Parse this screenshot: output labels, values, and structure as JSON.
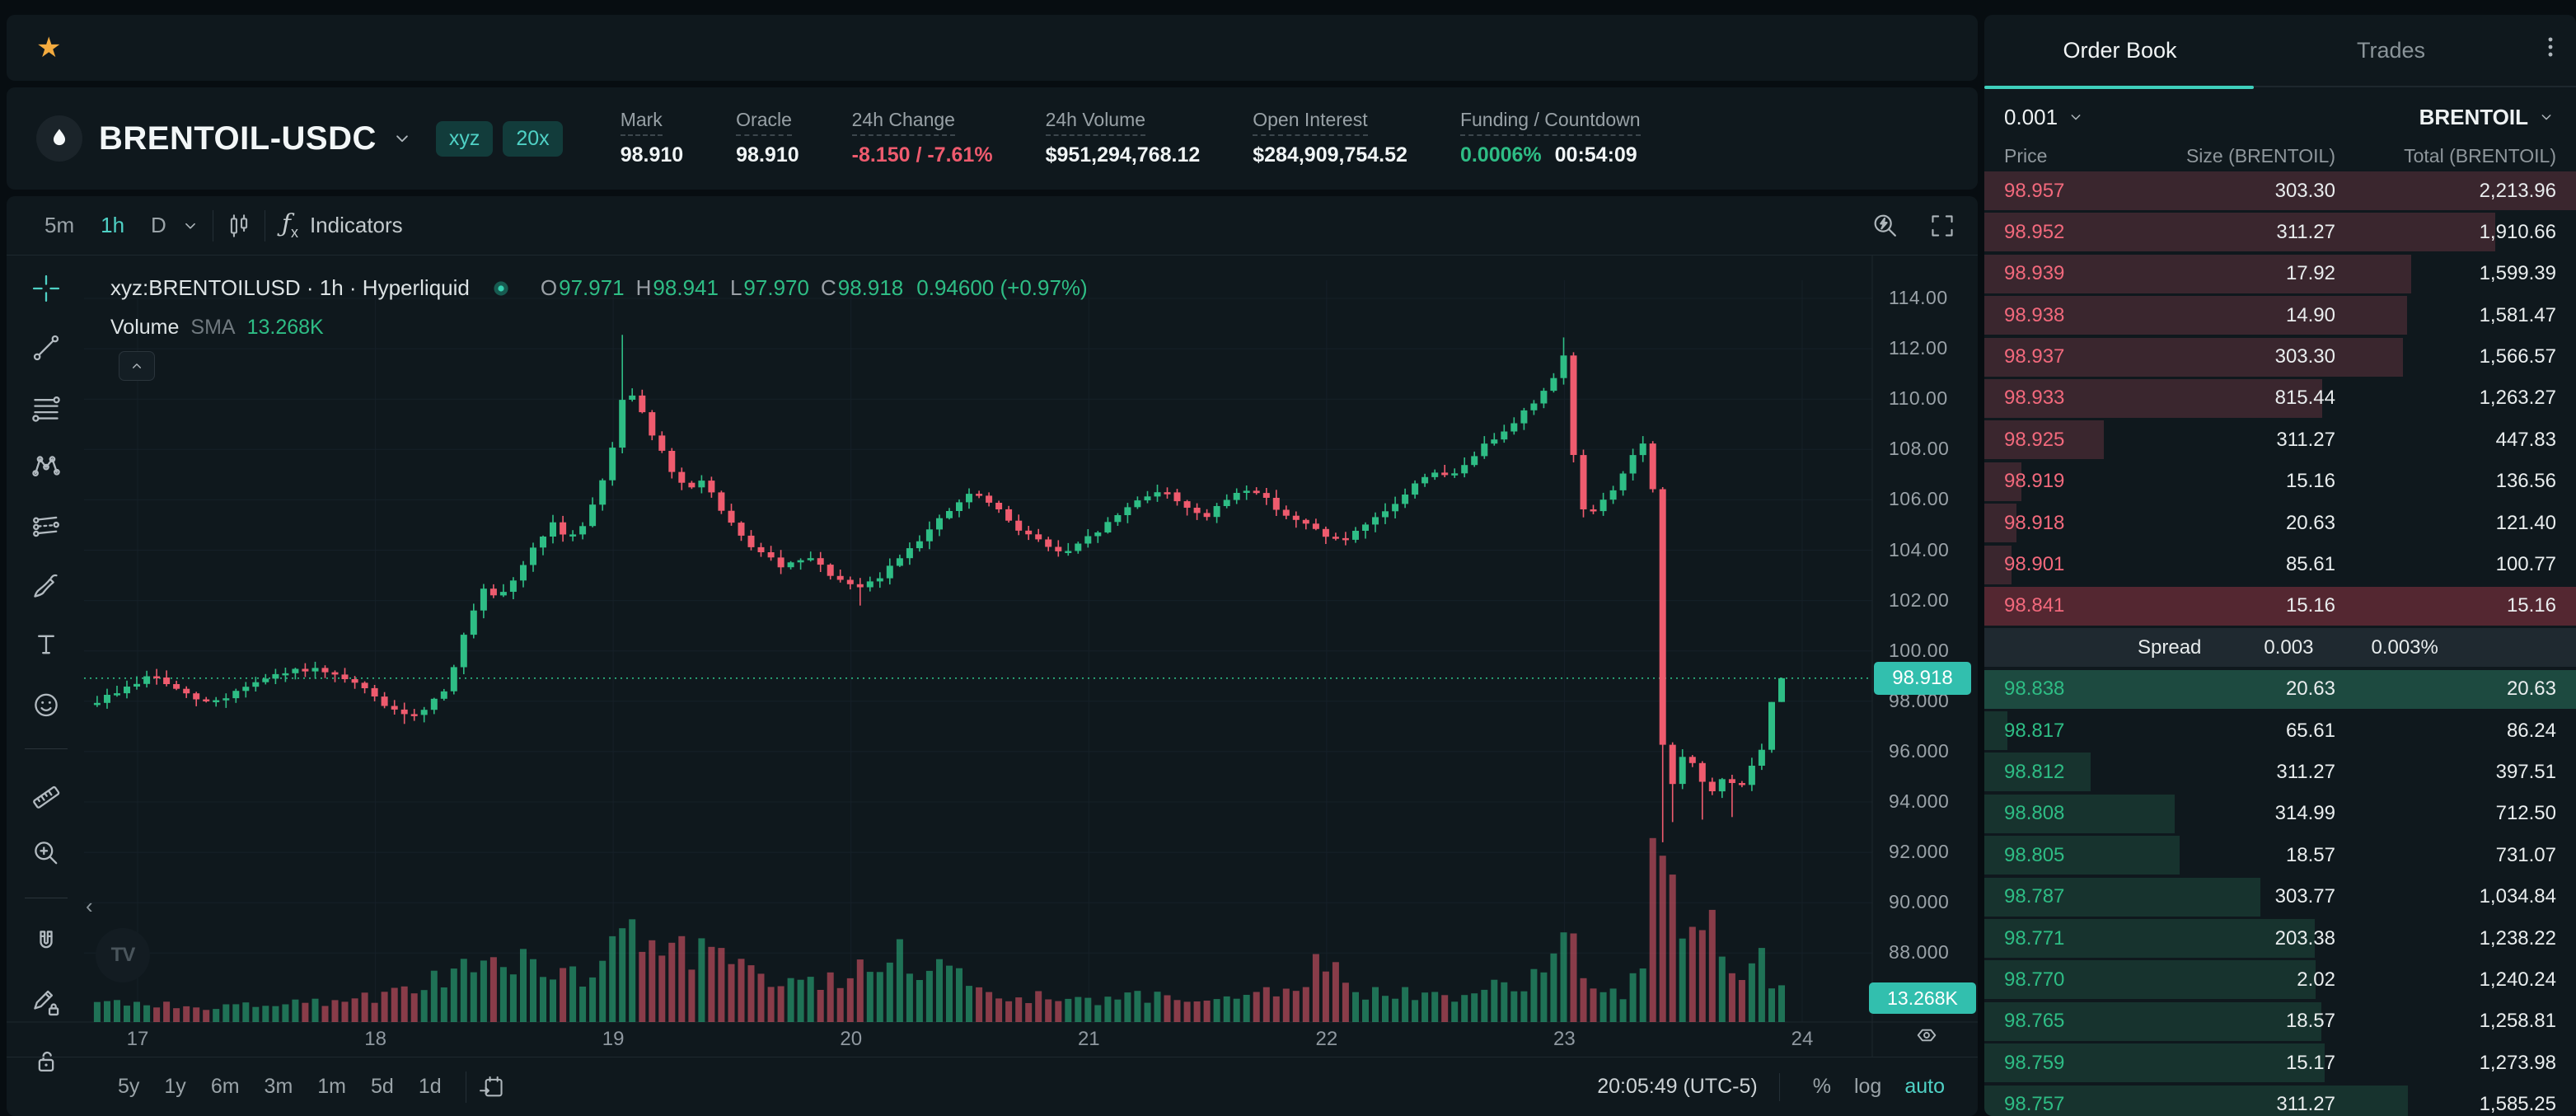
{
  "theme": {
    "bg": "#070d11",
    "panel": "#0f181d",
    "teal": "#4fd1c5",
    "green": "#2ebd85",
    "red": "#ef5b6e",
    "ask_text": "#f2697c",
    "depth_red": "#3a262e",
    "depth_green": "#17332e",
    "flash_red": "#542731",
    "flash_green": "#1d4a40",
    "badge_teal": "#32bfae",
    "star": "#f3ab3f"
  },
  "favorites_bar": {
    "star_icon": "star"
  },
  "symbol_header": {
    "logo_icon": "droplet",
    "symbol": "BRENTOIL-USDC",
    "badges": [
      {
        "label": "xyz"
      },
      {
        "label": "20x"
      }
    ],
    "stats": [
      {
        "label": "Mark",
        "value": "98.910",
        "color": "text"
      },
      {
        "label": "Oracle",
        "value": "98.910",
        "color": "text"
      },
      {
        "label": "24h Change",
        "value": "-8.150 / -7.61%",
        "color": "red"
      },
      {
        "label": "24h Volume",
        "value": "$951,294,768.12",
        "color": "text"
      },
      {
        "label": "Open Interest",
        "value": "$284,909,754.52",
        "color": "text"
      },
      {
        "label": "Funding / Countdown",
        "value": "0.0006%",
        "value2": "00:54:09",
        "color": "funding"
      }
    ]
  },
  "chart_toolbar": {
    "intervals": [
      {
        "label": "5m",
        "active": false
      },
      {
        "label": "1h",
        "active": true
      },
      {
        "label": "D",
        "active": false
      }
    ],
    "indicators_label": "Indicators"
  },
  "drawing_tools": [
    {
      "name": "cursor-crosshair-tool",
      "icon": "crosshair",
      "active": true
    },
    {
      "name": "trend-line-tool",
      "icon": "trend",
      "active": false
    },
    {
      "name": "fib-retracement-tool",
      "icon": "fib",
      "active": false
    },
    {
      "name": "xabcd-pattern-tool",
      "icon": "xabcd",
      "active": false
    },
    {
      "name": "parallel-lines-tool",
      "icon": "parallel",
      "active": false
    },
    {
      "name": "brush-tool",
      "icon": "brush",
      "active": false
    },
    {
      "name": "text-tool",
      "icon": "text",
      "active": false
    },
    {
      "name": "emoji-tool",
      "icon": "emoji",
      "active": false
    },
    {
      "divider": true
    },
    {
      "name": "ruler-tool",
      "icon": "ruler",
      "active": false
    },
    {
      "name": "zoom-in-tool",
      "icon": "zoomin",
      "active": false
    },
    {
      "divider": true
    },
    {
      "name": "magnet-tool",
      "icon": "magnet",
      "active": false
    },
    {
      "name": "drawing-lock-tool",
      "icon": "pencilLock",
      "active": false
    },
    {
      "name": "lock-all-drawings-tool",
      "icon": "lockOpen",
      "active": false
    },
    {
      "name": "hide-drawings-tool",
      "icon": "eyePartial",
      "active": false
    }
  ],
  "chart": {
    "legend": {
      "title": "xyz:BRENTOILUSD · 1h · Hyperliquid",
      "o_label": "O",
      "o": "97.971",
      "h_label": "H",
      "h": "98.941",
      "l_label": "L",
      "l": "97.970",
      "c_label": "C",
      "c": "98.918",
      "change": "0.94600 (+0.97%)"
    },
    "volume_legend": {
      "label": "Volume",
      "sma": "SMA",
      "value": "13.268K"
    },
    "price_label": "98.918",
    "volume_label": "13.268K",
    "y_axis": [
      "114.00",
      "112.00",
      "110.00",
      "108.00",
      "106.00",
      "104.00",
      "102.00",
      "100.00",
      "98.000",
      "96.000",
      "94.000",
      "92.000",
      "90.000",
      "88.000"
    ],
    "x_axis": [
      "17",
      "18",
      "19",
      "20",
      "21",
      "22",
      "23",
      "24"
    ],
    "bottom": {
      "ranges": [
        "5y",
        "1y",
        "6m",
        "3m",
        "1m",
        "5d",
        "1d"
      ],
      "clock": "20:05:49 (UTC-5)",
      "percent": "%",
      "log": "log",
      "auto": "auto"
    }
  },
  "chart_data": {
    "type": "candlestick",
    "symbol": "xyz:BRENTOILUSD",
    "interval": "1h",
    "exchange": "Hyperliquid",
    "current_price": 98.918,
    "current_volume": "13.268K",
    "price_axis_range": [
      86.5,
      114.5
    ],
    "grid_prices": [
      88,
      90,
      92,
      94,
      96,
      98,
      100,
      102,
      104,
      106,
      108,
      110,
      112,
      114
    ],
    "day_ticks": [
      17,
      18,
      19,
      20,
      21,
      22,
      23,
      24
    ],
    "t_start": 16.83,
    "t_end": 23.94,
    "price_anchors": [
      [
        16.83,
        98.0
      ],
      [
        16.92,
        98.4
      ],
      [
        17.0,
        98.75
      ],
      [
        17.06,
        99.05
      ],
      [
        17.12,
        98.7
      ],
      [
        17.2,
        98.25
      ],
      [
        17.28,
        97.95
      ],
      [
        17.36,
        98.1
      ],
      [
        17.45,
        98.6
      ],
      [
        17.55,
        98.9
      ],
      [
        17.64,
        99.15
      ],
      [
        17.72,
        99.3
      ],
      [
        17.8,
        99.05
      ],
      [
        17.9,
        98.75
      ],
      [
        17.98,
        98.3
      ],
      [
        18.06,
        97.7
      ],
      [
        18.13,
        97.35
      ],
      [
        18.22,
        97.8
      ],
      [
        18.3,
        98.6
      ],
      [
        18.38,
        100.8
      ],
      [
        18.45,
        102.4
      ],
      [
        18.52,
        102.0
      ],
      [
        18.6,
        103.1
      ],
      [
        18.68,
        104.3
      ],
      [
        18.74,
        105.1
      ],
      [
        18.8,
        104.4
      ],
      [
        18.87,
        105.0
      ],
      [
        18.94,
        106.3
      ],
      [
        19.0,
        108.2
      ],
      [
        19.05,
        110.6
      ],
      [
        19.1,
        109.9
      ],
      [
        19.17,
        108.5
      ],
      [
        19.24,
        107.2
      ],
      [
        19.31,
        106.3
      ],
      [
        19.38,
        106.9
      ],
      [
        19.46,
        105.4
      ],
      [
        19.54,
        104.5
      ],
      [
        19.63,
        103.8
      ],
      [
        19.72,
        103.3
      ],
      [
        19.82,
        103.7
      ],
      [
        19.92,
        103.0
      ],
      [
        20.02,
        102.4
      ],
      [
        20.12,
        102.9
      ],
      [
        20.22,
        103.9
      ],
      [
        20.33,
        104.8
      ],
      [
        20.44,
        105.8
      ],
      [
        20.52,
        106.3
      ],
      [
        20.6,
        105.7
      ],
      [
        20.7,
        104.9
      ],
      [
        20.8,
        104.3
      ],
      [
        20.9,
        103.8
      ],
      [
        21.0,
        104.5
      ],
      [
        21.1,
        105.2
      ],
      [
        21.2,
        106.0
      ],
      [
        21.3,
        106.4
      ],
      [
        21.4,
        105.8
      ],
      [
        21.5,
        105.3
      ],
      [
        21.6,
        106.2
      ],
      [
        21.68,
        106.5
      ],
      [
        21.76,
        105.9
      ],
      [
        21.86,
        105.2
      ],
      [
        21.96,
        104.8
      ],
      [
        22.06,
        104.3
      ],
      [
        22.16,
        104.9
      ],
      [
        22.26,
        105.6
      ],
      [
        22.36,
        106.5
      ],
      [
        22.44,
        107.2
      ],
      [
        22.52,
        106.8
      ],
      [
        22.62,
        107.8
      ],
      [
        22.72,
        108.6
      ],
      [
        22.82,
        109.4
      ],
      [
        22.92,
        110.3
      ],
      [
        22.97,
        111.2
      ],
      [
        23.01,
        112.0
      ],
      [
        23.05,
        106.0
      ],
      [
        23.11,
        105.4
      ],
      [
        23.17,
        106.0
      ],
      [
        23.23,
        106.7
      ],
      [
        23.28,
        107.7
      ],
      [
        23.33,
        108.2
      ],
      [
        23.37,
        106.8
      ],
      [
        23.41,
        96.3
      ],
      [
        23.46,
        94.5
      ],
      [
        23.51,
        96.3
      ],
      [
        23.56,
        95.1
      ],
      [
        23.61,
        94.2
      ],
      [
        23.67,
        95.0
      ],
      [
        23.73,
        94.5
      ],
      [
        23.79,
        95.5
      ],
      [
        23.85,
        96.2
      ],
      [
        23.9,
        97.3
      ],
      [
        23.92,
        97.971
      ],
      [
        23.94,
        98.918
      ]
    ],
    "wick_highs": [
      [
        19.05,
        112.55
      ],
      [
        23.01,
        112.45
      ]
    ],
    "wick_lows": [
      [
        18.13,
        97.1
      ],
      [
        20.05,
        101.8
      ],
      [
        23.41,
        92.4
      ],
      [
        23.46,
        93.2
      ],
      [
        23.6,
        93.3
      ],
      [
        23.72,
        93.4
      ]
    ],
    "last_candle": {
      "o": 97.971,
      "h": 98.941,
      "l": 97.97,
      "c": 98.918
    },
    "volume_anchors": [
      [
        16.83,
        0.1
      ],
      [
        17.3,
        0.07
      ],
      [
        17.8,
        0.09
      ],
      [
        18.1,
        0.13
      ],
      [
        18.35,
        0.22
      ],
      [
        18.5,
        0.3
      ],
      [
        18.7,
        0.24
      ],
      [
        18.9,
        0.2
      ],
      [
        19.02,
        0.46
      ],
      [
        19.12,
        0.4
      ],
      [
        19.25,
        0.36
      ],
      [
        19.45,
        0.28
      ],
      [
        19.6,
        0.2
      ],
      [
        19.8,
        0.15
      ],
      [
        20.0,
        0.22
      ],
      [
        20.2,
        0.3
      ],
      [
        20.4,
        0.21
      ],
      [
        20.6,
        0.14
      ],
      [
        20.8,
        0.11
      ],
      [
        21.0,
        0.1
      ],
      [
        21.3,
        0.12
      ],
      [
        21.6,
        0.1
      ],
      [
        21.8,
        0.14
      ],
      [
        22.0,
        0.27
      ],
      [
        22.15,
        0.13
      ],
      [
        22.35,
        0.14
      ],
      [
        22.55,
        0.12
      ],
      [
        22.75,
        0.16
      ],
      [
        22.95,
        0.24
      ],
      [
        23.02,
        0.36
      ],
      [
        23.1,
        0.18
      ],
      [
        23.25,
        0.13
      ],
      [
        23.33,
        0.22
      ],
      [
        23.4,
        1.0
      ],
      [
        23.45,
        0.58
      ],
      [
        23.5,
        0.46
      ],
      [
        23.56,
        0.38
      ],
      [
        23.62,
        0.44
      ],
      [
        23.68,
        0.3
      ],
      [
        23.75,
        0.24
      ],
      [
        23.82,
        0.3
      ],
      [
        23.88,
        0.18
      ],
      [
        23.94,
        0.15
      ]
    ]
  },
  "order_book": {
    "tabs": [
      {
        "label": "Order Book",
        "active": true
      },
      {
        "label": "Trades",
        "active": false
      }
    ],
    "tick": "0.001",
    "asset": "BRENTOIL",
    "columns": [
      "Price",
      "Size (BRENTOIL)",
      "Total (BRENTOIL)"
    ],
    "spread": {
      "label": "Spread",
      "value": "0.003",
      "percent": "0.003%"
    },
    "asks": [
      {
        "price": "98.957",
        "size": "303.30",
        "total": "2,213.96",
        "depth": 1.0,
        "flash": false
      },
      {
        "price": "98.952",
        "size": "311.27",
        "total": "1,910.66",
        "depth": 0.863,
        "flash": false
      },
      {
        "price": "98.939",
        "size": "17.92",
        "total": "1,599.39",
        "depth": 0.722,
        "flash": false
      },
      {
        "price": "98.938",
        "size": "14.90",
        "total": "1,581.47",
        "depth": 0.714,
        "flash": false
      },
      {
        "price": "98.937",
        "size": "303.30",
        "total": "1,566.57",
        "depth": 0.708,
        "flash": false
      },
      {
        "price": "98.933",
        "size": "815.44",
        "total": "1,263.27",
        "depth": 0.571,
        "flash": false
      },
      {
        "price": "98.925",
        "size": "311.27",
        "total": "447.83",
        "depth": 0.202,
        "flash": false
      },
      {
        "price": "98.919",
        "size": "15.16",
        "total": "136.56",
        "depth": 0.062,
        "flash": false
      },
      {
        "price": "98.918",
        "size": "20.63",
        "total": "121.40",
        "depth": 0.055,
        "flash": false
      },
      {
        "price": "98.901",
        "size": "85.61",
        "total": "100.77",
        "depth": 0.046,
        "flash": false
      },
      {
        "price": "98.841",
        "size": "15.16",
        "total": "15.16",
        "depth": 0.007,
        "flash": true
      }
    ],
    "bids": [
      {
        "price": "98.838",
        "size": "20.63",
        "total": "20.63",
        "depth": 0.009,
        "flash": true
      },
      {
        "price": "98.817",
        "size": "65.61",
        "total": "86.24",
        "depth": 0.039,
        "flash": false
      },
      {
        "price": "98.812",
        "size": "311.27",
        "total": "397.51",
        "depth": 0.18,
        "flash": false
      },
      {
        "price": "98.808",
        "size": "314.99",
        "total": "712.50",
        "depth": 0.322,
        "flash": false
      },
      {
        "price": "98.805",
        "size": "18.57",
        "total": "731.07",
        "depth": 0.33,
        "flash": false
      },
      {
        "price": "98.787",
        "size": "303.77",
        "total": "1,034.84",
        "depth": 0.467,
        "flash": false
      },
      {
        "price": "98.771",
        "size": "203.38",
        "total": "1,238.22",
        "depth": 0.559,
        "flash": false
      },
      {
        "price": "98.770",
        "size": "2.02",
        "total": "1,240.24",
        "depth": 0.56,
        "flash": false
      },
      {
        "price": "98.765",
        "size": "18.57",
        "total": "1,258.81",
        "depth": 0.569,
        "flash": false
      },
      {
        "price": "98.759",
        "size": "15.17",
        "total": "1,273.98",
        "depth": 0.575,
        "flash": false
      },
      {
        "price": "98.757",
        "size": "311.27",
        "total": "1,585.25",
        "depth": 0.716,
        "flash": false
      }
    ]
  }
}
